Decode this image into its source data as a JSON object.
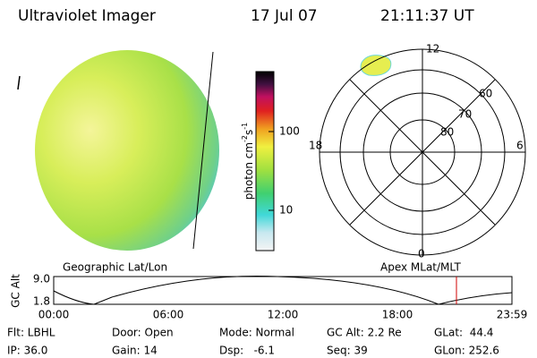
{
  "header": {
    "title": "Ultraviolet Imager",
    "date": "17 Jul 07",
    "time": "21:11:37 UT"
  },
  "colorbar": {
    "label": [
      "photon cm",
      "-2",
      "s",
      "-1"
    ],
    "ticks": [
      "100",
      "10"
    ]
  },
  "left_panel": {
    "caption": "Geographic Lat/Lon"
  },
  "polar": {
    "caption": "Apex MLat/MLT",
    "mlt_labels": [
      "12",
      "18",
      "6",
      "0"
    ],
    "mlat_labels": [
      "60",
      "70",
      "80"
    ]
  },
  "timeline": {
    "y_label": "GC Alt",
    "y_ticks": [
      "9.0",
      "1.8"
    ],
    "x_ticks": [
      "00:00",
      "06:00",
      "12:00",
      "18:00",
      "23:59"
    ]
  },
  "status": {
    "rows": [
      [
        "Flt: LBHL",
        "Door: Open",
        "Mode: Normal",
        "GC Alt: 2.2 Re",
        "GLat:  44.4"
      ],
      [
        "IP: 36.0",
        "Gain: 14",
        "Dsp:   -6.1",
        "Seq: 39",
        "GLon: 252.6"
      ]
    ]
  }
}
